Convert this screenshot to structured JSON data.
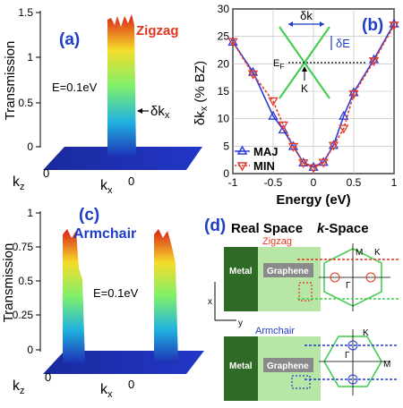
{
  "panel_a": {
    "label": "(a)",
    "tag": "Zigzag",
    "energy": "E=0.1eV",
    "ylabel": "Transmission",
    "yticks": [
      "1.5",
      "1",
      "0.5",
      "0"
    ],
    "kz": "k",
    "kz_sub": "z",
    "kz_zero": "0",
    "kx": "k",
    "kx_sub": "x",
    "kx_zero": "0",
    "dk": "δk",
    "dk_sub": "x"
  },
  "panel_b": {
    "label": "(b)",
    "ylabel": "δk",
    "ylabel_sub": "x",
    "ylabel_unit": " (% BZ)",
    "xlabel": "Energy (eV)",
    "inset": {
      "dk": "δk",
      "dE": "δE",
      "ef": "E",
      "ef_sub": "F",
      "k": "K"
    }
  },
  "panel_c": {
    "label": "(c)",
    "tag": "Armchair",
    "energy": "E=0.1eV",
    "ylabel": "Transmission",
    "yticks": [
      "1",
      "0.75",
      "0.5",
      "0.25",
      "0"
    ],
    "kz": "k",
    "kz_sub": "z",
    "kz_zero": "0",
    "kx": "k",
    "kx_sub": "x",
    "kx_zero": "0"
  },
  "panel_d": {
    "label": "(d)",
    "real_space": "Real Space",
    "k_space_k": "k",
    "k_space_rest": "-Space",
    "zigzag": "Zigzag",
    "armchair": "Armchair",
    "metal": "Metal",
    "graphene": "Graphene",
    "x": "x",
    "y": "y",
    "M": "M",
    "K": "K",
    "Gamma": "Γ"
  },
  "chart_data": [
    {
      "panel": "(b)",
      "type": "line",
      "xlabel": "Energy (eV)",
      "ylabel": "δkx (% BZ)",
      "xlim": [
        -1,
        1
      ],
      "ylim": [
        0,
        30
      ],
      "xticks": [
        "-1",
        "-0.5",
        "0",
        "0.5",
        "1"
      ],
      "yticks": [
        "0",
        "5",
        "10",
        "15",
        "20",
        "25",
        "30"
      ],
      "grid": true,
      "legend_position": "bottom-left",
      "x": [
        -1,
        -0.75,
        -0.5,
        -0.375,
        -0.25,
        -0.125,
        0,
        0.125,
        0.25,
        0.375,
        0.5,
        0.75,
        1
      ],
      "series": [
        {
          "name": "MAJ",
          "color": "#2a3bd8",
          "marker": "triangle-up",
          "values": [
            24,
            18.5,
            10.5,
            8,
            5,
            2,
            1.2,
            2.1,
            5.2,
            10.5,
            14.8,
            20.8,
            27.3
          ]
        },
        {
          "name": "MIN",
          "color": "#e23a2a",
          "marker": "triangle-down",
          "values": [
            24,
            18.1,
            13.2,
            8.8,
            4.9,
            1.9,
            1.0,
            2.0,
            5.1,
            8.2,
            14.5,
            20.5,
            27.0
          ]
        }
      ]
    }
  ]
}
